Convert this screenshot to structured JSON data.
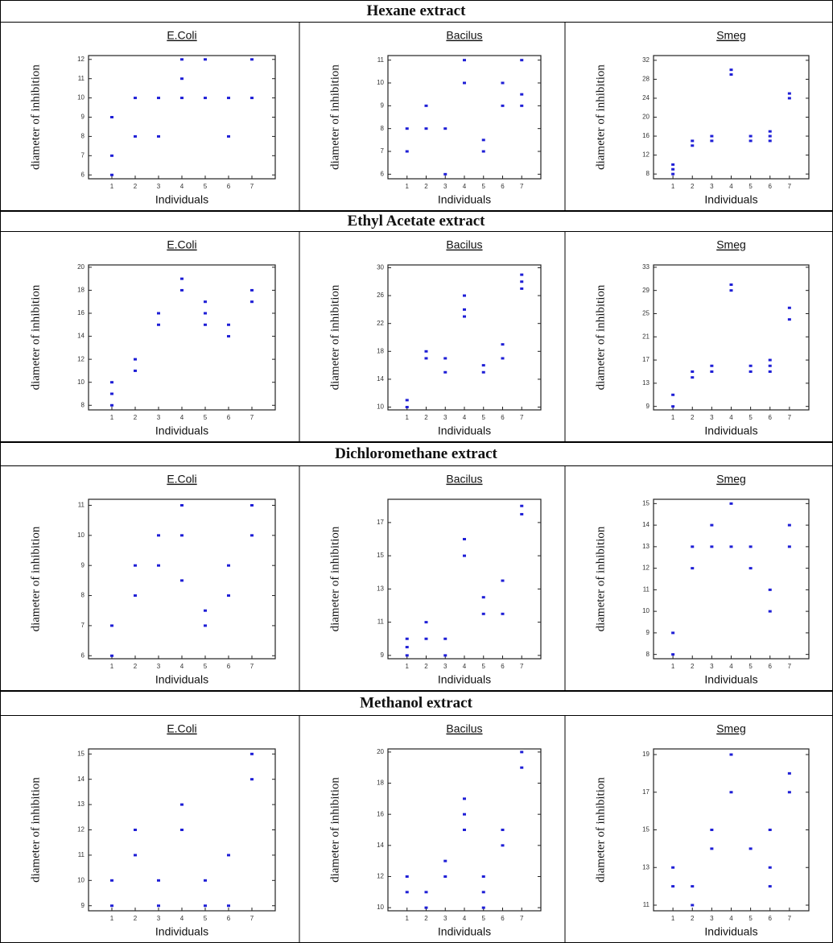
{
  "sections": [
    "Hexane extract",
    "Ethyl Acetate extract",
    "Dichloromethane extract",
    "Methanol extract"
  ],
  "chart_data": [
    {
      "type": "scatter",
      "title": "E.Coli",
      "xlabel": "Individuals",
      "ylabel": "diameter of inhibition",
      "color": "#1f1fd6",
      "xlim": [
        0,
        8
      ],
      "xticks": [
        1,
        2,
        3,
        4,
        5,
        6,
        7
      ],
      "ylim": [
        5.8,
        12.2
      ],
      "yticks": [
        6,
        7,
        8,
        9,
        10,
        11,
        12
      ],
      "x": [
        1,
        1,
        1,
        2,
        2,
        3,
        3,
        4,
        4,
        4,
        5,
        5,
        6,
        6,
        7,
        7
      ],
      "values": [
        9,
        7,
        6,
        10,
        8,
        10,
        8,
        12,
        11,
        10,
        12,
        10,
        10,
        8,
        12,
        10
      ]
    },
    {
      "type": "scatter",
      "title": "Bacilus",
      "xlabel": "Individuals",
      "ylabel": "diameter of inhibition",
      "color": "#1f1fd6",
      "xlim": [
        0,
        8
      ],
      "xticks": [
        1,
        2,
        3,
        4,
        5,
        6,
        7
      ],
      "ylim": [
        5.8,
        11.2
      ],
      "yticks": [
        6,
        7,
        8,
        9,
        10,
        11
      ],
      "x": [
        1,
        1,
        2,
        2,
        3,
        3,
        4,
        4,
        5,
        5,
        6,
        6,
        7,
        7,
        7
      ],
      "values": [
        8,
        7,
        9,
        8,
        8,
        6,
        11,
        10,
        7.5,
        7,
        10,
        9,
        11,
        9.5,
        9
      ]
    },
    {
      "type": "scatter",
      "title": "Smeg",
      "xlabel": "Individuals",
      "ylabel": "diameter of inhibition",
      "color": "#1f1fd6",
      "xlim": [
        0,
        8
      ],
      "xticks": [
        1,
        2,
        3,
        4,
        5,
        6,
        7
      ],
      "ylim": [
        7,
        33
      ],
      "yticks": [
        8,
        12,
        16,
        20,
        24,
        28,
        32
      ],
      "x": [
        1,
        1,
        1,
        2,
        2,
        3,
        3,
        4,
        4,
        5,
        5,
        6,
        6,
        6,
        7,
        7
      ],
      "values": [
        8,
        9,
        10,
        14,
        15,
        15,
        16,
        29,
        30,
        15,
        16,
        15,
        16,
        17,
        24,
        25
      ]
    },
    {
      "type": "scatter",
      "title": "E.Coli",
      "xlabel": "Individuals",
      "ylabel": "diameter of inhibition",
      "color": "#1f1fd6",
      "xlim": [
        0,
        8
      ],
      "xticks": [
        1,
        2,
        3,
        4,
        5,
        6,
        7
      ],
      "ylim": [
        7.6,
        20.2
      ],
      "yticks": [
        8,
        10,
        12,
        14,
        16,
        18,
        20
      ],
      "x": [
        1,
        1,
        1,
        2,
        2,
        3,
        3,
        4,
        4,
        5,
        5,
        5,
        6,
        6,
        7,
        7
      ],
      "values": [
        8,
        9,
        10,
        11,
        12,
        15,
        16,
        18,
        19,
        15,
        16,
        17,
        14,
        15,
        17,
        18
      ]
    },
    {
      "type": "scatter",
      "title": "Bacilus",
      "xlabel": "Individuals",
      "ylabel": "diameter of inhibition",
      "color": "#1f1fd6",
      "xlim": [
        0,
        8
      ],
      "xticks": [
        1,
        2,
        3,
        4,
        5,
        6,
        7
      ],
      "ylim": [
        9.6,
        30.4
      ],
      "yticks": [
        10,
        14,
        18,
        22,
        26,
        30
      ],
      "x": [
        1,
        1,
        2,
        2,
        3,
        3,
        4,
        4,
        4,
        5,
        5,
        6,
        6,
        7,
        7,
        7
      ],
      "values": [
        10,
        11,
        17,
        18,
        15,
        17,
        23,
        24,
        26,
        15,
        16,
        17,
        19,
        27,
        28,
        29
      ]
    },
    {
      "type": "scatter",
      "title": "Smeg",
      "xlabel": "Individuals",
      "ylabel": "diameter of inhibition",
      "color": "#1f1fd6",
      "xlim": [
        0,
        8
      ],
      "xticks": [
        1,
        2,
        3,
        4,
        5,
        6,
        7
      ],
      "ylim": [
        8.4,
        33.4
      ],
      "yticks": [
        9,
        13,
        17,
        21,
        25,
        29,
        33
      ],
      "x": [
        1,
        1,
        2,
        2,
        3,
        3,
        4,
        4,
        5,
        5,
        6,
        6,
        6,
        7,
        7
      ],
      "values": [
        9,
        11,
        14,
        15,
        15,
        16,
        29,
        30,
        15,
        16,
        15,
        16,
        17,
        24,
        26
      ]
    },
    {
      "type": "scatter",
      "title": "E.Coli",
      "xlabel": "Individuals",
      "ylabel": "diameter of inhibition",
      "color": "#1f1fd6",
      "xlim": [
        0,
        8
      ],
      "xticks": [
        1,
        2,
        3,
        4,
        5,
        6,
        7
      ],
      "ylim": [
        5.9,
        11.2
      ],
      "yticks": [
        6,
        7,
        8,
        9,
        10,
        11
      ],
      "x": [
        1,
        1,
        2,
        2,
        3,
        3,
        4,
        4,
        4,
        5,
        5,
        6,
        6,
        7,
        7
      ],
      "values": [
        6,
        7,
        8,
        9,
        9,
        10,
        8.5,
        10,
        11,
        7,
        7.5,
        8,
        9,
        10,
        11
      ]
    },
    {
      "type": "scatter",
      "title": "Bacilus",
      "xlabel": "Individuals",
      "ylabel": "diameter of inhibition",
      "color": "#1f1fd6",
      "xlim": [
        0,
        8
      ],
      "xticks": [
        1,
        2,
        3,
        4,
        5,
        6,
        7
      ],
      "ylim": [
        8.8,
        18.4
      ],
      "yticks": [
        9,
        11,
        13,
        15,
        17
      ],
      "x": [
        1,
        1,
        1,
        2,
        2,
        3,
        3,
        4,
        4,
        5,
        5,
        6,
        6,
        7,
        7
      ],
      "values": [
        9,
        9.5,
        10,
        10,
        11,
        9,
        10,
        15,
        16,
        11.5,
        12.5,
        11.5,
        13.5,
        17.5,
        18
      ]
    },
    {
      "type": "scatter",
      "title": "Smeg",
      "xlabel": "Individuals",
      "ylabel": "diameter of inhibition",
      "color": "#1f1fd6",
      "xlim": [
        0,
        8
      ],
      "xticks": [
        1,
        2,
        3,
        4,
        5,
        6,
        7
      ],
      "ylim": [
        7.8,
        15.2
      ],
      "yticks": [
        8,
        9,
        10,
        11,
        12,
        13,
        14,
        15
      ],
      "x": [
        1,
        1,
        2,
        2,
        3,
        3,
        4,
        4,
        5,
        5,
        6,
        6,
        7,
        7
      ],
      "values": [
        8,
        9,
        12,
        13,
        13,
        14,
        13,
        15,
        12,
        13,
        10,
        11,
        13,
        14
      ]
    },
    {
      "type": "scatter",
      "title": "E.Coli",
      "xlabel": "Individuals",
      "ylabel": "diameter of inhibition",
      "color": "#1f1fd6",
      "xlim": [
        0,
        8
      ],
      "xticks": [
        1,
        2,
        3,
        4,
        5,
        6,
        7
      ],
      "ylim": [
        8.8,
        15.2
      ],
      "yticks": [
        9,
        10,
        11,
        12,
        13,
        14,
        15
      ],
      "x": [
        1,
        1,
        2,
        2,
        3,
        3,
        4,
        4,
        5,
        5,
        6,
        6,
        7,
        7
      ],
      "values": [
        9,
        10,
        11,
        12,
        9,
        10,
        12,
        13,
        9,
        10,
        9,
        11,
        14,
        15
      ]
    },
    {
      "type": "scatter",
      "title": "Bacilus",
      "xlabel": "Individuals",
      "ylabel": "diameter of inhibition",
      "color": "#1f1fd6",
      "xlim": [
        0,
        8
      ],
      "xticks": [
        1,
        2,
        3,
        4,
        5,
        6,
        7
      ],
      "ylim": [
        9.8,
        20.2
      ],
      "yticks": [
        10,
        12,
        14,
        16,
        18,
        20
      ],
      "x": [
        1,
        1,
        2,
        2,
        3,
        3,
        4,
        4,
        4,
        5,
        5,
        5,
        6,
        6,
        7,
        7
      ],
      "values": [
        11,
        12,
        10,
        11,
        12,
        13,
        15,
        16,
        17,
        10,
        11,
        12,
        14,
        15,
        19,
        20
      ]
    },
    {
      "type": "scatter",
      "title": "Smeg",
      "xlabel": "Individuals",
      "ylabel": "diameter of inhibition",
      "color": "#1f1fd6",
      "xlim": [
        0,
        8
      ],
      "xticks": [
        1,
        2,
        3,
        4,
        5,
        6,
        7
      ],
      "ylim": [
        10.7,
        19.3
      ],
      "yticks": [
        11,
        13,
        15,
        17,
        19
      ],
      "x": [
        1,
        1,
        2,
        2,
        3,
        3,
        4,
        4,
        5,
        6,
        6,
        6,
        7,
        7
      ],
      "values": [
        12,
        13,
        11,
        12,
        14,
        15,
        17,
        19,
        14,
        12,
        13,
        15,
        17,
        18
      ]
    }
  ]
}
